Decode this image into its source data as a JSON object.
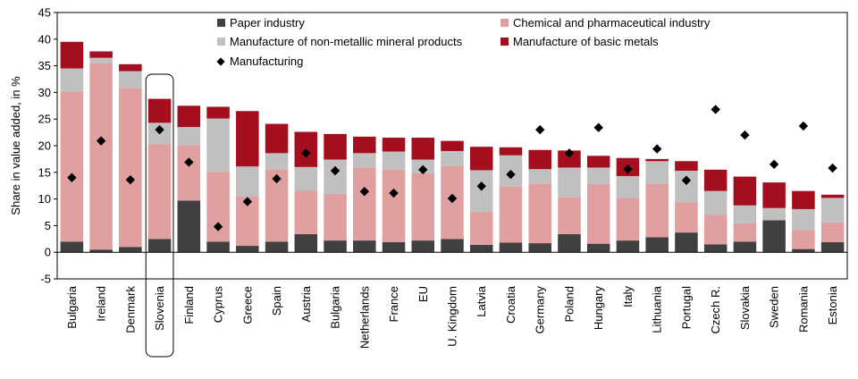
{
  "chart_data": {
    "type": "bar",
    "stacked": true,
    "ylabel": "Share in value added, in %",
    "ylim": [
      -5,
      45
    ],
    "yticks": [
      -5,
      0,
      5,
      10,
      15,
      20,
      25,
      30,
      35,
      40,
      45
    ],
    "grid": false,
    "legend_position": "top",
    "highlight_category": "Slovenia",
    "categories": [
      "Bulgaria",
      "Ireland",
      "Denmark",
      "Slovenia",
      "Finland",
      "Cyprus",
      "Greece",
      "Spain",
      "Austria",
      "Bulgaria",
      "Netherlands",
      "France",
      "EU",
      "U. Kingdom",
      "Latvia",
      "Croatia",
      "Germany",
      "Poland",
      "Hungary",
      "Italy",
      "Lithuania",
      "Portugal",
      "Czech R.",
      "Slovakia",
      "Sweden",
      "Romania",
      "Estonia"
    ],
    "series": [
      {
        "name": "Paper industry",
        "color": "#404040",
        "values": [
          2.0,
          0.5,
          1.0,
          2.5,
          9.7,
          2.0,
          1.2,
          2.0,
          3.4,
          2.2,
          2.2,
          1.9,
          2.2,
          2.5,
          1.4,
          1.8,
          1.7,
          3.4,
          1.6,
          2.2,
          2.8,
          3.7,
          1.5,
          2.0,
          6.0,
          0.6,
          1.9
        ]
      },
      {
        "name": "Chemical and pharmaceutical industry",
        "color": "#e0a0a0",
        "values": [
          28.2,
          35.0,
          29.8,
          17.8,
          10.4,
          13.1,
          9.3,
          13.6,
          8.2,
          8.8,
          13.7,
          13.6,
          12.6,
          13.7,
          6.2,
          10.5,
          11.2,
          7.0,
          11.2,
          8.0,
          10.1,
          5.7,
          5.5,
          3.4,
          0.0,
          3.6,
          3.7
        ]
      },
      {
        "name": "Manufacture of non-metallic mineral products",
        "color": "#c0c0c0",
        "values": [
          4.3,
          1.0,
          3.2,
          4.0,
          3.4,
          10.0,
          5.6,
          3.0,
          4.4,
          6.4,
          2.7,
          3.4,
          2.6,
          2.8,
          7.8,
          5.9,
          2.7,
          5.5,
          3.1,
          4.1,
          4.2,
          5.9,
          4.5,
          3.4,
          2.3,
          3.9,
          4.6
        ]
      },
      {
        "name": "Manufacture of basic metals",
        "color": "#a30f1f",
        "values": [
          5.0,
          1.2,
          1.3,
          4.5,
          4.0,
          2.2,
          10.4,
          5.5,
          6.6,
          4.8,
          3.1,
          2.6,
          4.1,
          1.9,
          4.4,
          1.5,
          3.6,
          3.2,
          2.2,
          3.4,
          0.4,
          1.8,
          4.0,
          5.4,
          4.8,
          3.4,
          0.6
        ]
      }
    ],
    "markers": {
      "name": "Manufacturing",
      "color": "#000000",
      "values": [
        14.0,
        20.9,
        13.6,
        23.0,
        16.9,
        4.8,
        9.5,
        13.8,
        18.6,
        15.3,
        11.4,
        11.1,
        15.5,
        10.1,
        12.4,
        14.6,
        23.0,
        18.6,
        23.4,
        15.6,
        19.4,
        13.5,
        26.8,
        22.0,
        16.5,
        23.7,
        15.8
      ]
    }
  }
}
